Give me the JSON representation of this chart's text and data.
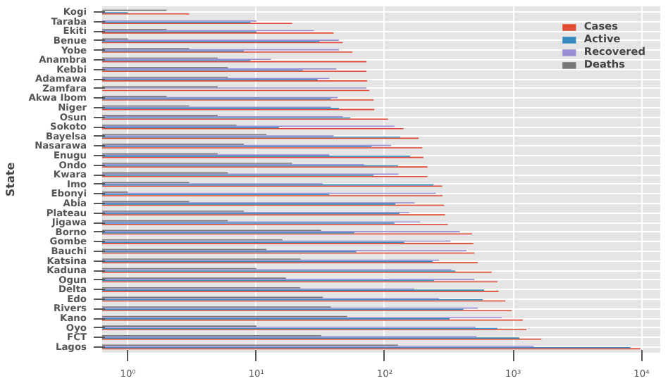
{
  "chart_data": {
    "type": "bar",
    "orientation": "horizontal",
    "log": "x",
    "ylabel": "State",
    "categories": [
      "Kogi",
      "Taraba",
      "Ekiti",
      "Benue",
      "Yobe",
      "Anambra",
      "Kebbi",
      "Adamawa",
      "Zamfara",
      "Akwa Ibom",
      "Niger",
      "Osun",
      "Sokoto",
      "Bayelsa",
      "Nasarawa",
      "Enugu",
      "Ondo",
      "Kwara",
      "Imo",
      "Ebonyi",
      "Abia",
      "Plateau",
      "Jigawa",
      "Borno",
      "Gombe",
      "Bauchi",
      "Katsina",
      "Kaduna",
      "Ogun",
      "Delta",
      "Edo",
      "Rivers",
      "Kano",
      "Oyo",
      "FCT",
      "Lagos"
    ],
    "series": [
      {
        "name": "Cases",
        "color": "#e24a33",
        "values": [
          3,
          19,
          40,
          47,
          56,
          72,
          72,
          73,
          76,
          82,
          83,
          106,
          140,
          184,
          196,
          200,
          215,
          215,
          280,
          282,
          290,
          295,
          310,
          478,
          490,
          500,
          530,
          680,
          755,
          770,
          870,
          975,
          1190,
          1270,
          1660,
          9800
        ]
      },
      {
        "name": "Active",
        "color": "#348abd",
        "values": [
          1,
          9,
          10,
          31,
          8,
          9,
          23,
          30,
          null,
          38,
          44,
          54,
          15,
          132,
          79,
          158,
          127,
          82,
          240,
          37,
          121,
          130,
          119,
          58,
          142,
          60,
          236,
          355,
          242,
          595,
          580,
          410,
          320,
          755,
          1120,
          8200
        ]
      },
      {
        "name": "Recovered",
        "color": "#988ed5",
        "values": [
          null,
          10,
          28,
          44,
          44,
          13,
          42,
          37,
          72,
          43,
          38,
          47,
          119,
          40,
          112,
          37,
          69,
          128,
          33,
          250,
          171,
          155,
          189,
          385,
          325,
          433,
          265,
          330,
          500,
          170,
          265,
          530,
          815,
          510,
          520,
          1450
        ]
      },
      {
        "name": "Deaths",
        "color": "#777777",
        "values": [
          2,
          null,
          2,
          1,
          3,
          5,
          6,
          6,
          5,
          2,
          3,
          5,
          7,
          12,
          8,
          5,
          19,
          6,
          3,
          1,
          3,
          8,
          6,
          32,
          16,
          12,
          22,
          10,
          17,
          22,
          33,
          38,
          51,
          10,
          32,
          127
        ]
      }
    ],
    "xlim": [
      0.63,
      14000
    ],
    "xticks": [
      {
        "value": 1,
        "label": "10⁰"
      },
      {
        "value": 10,
        "label": "10¹"
      },
      {
        "value": 100,
        "label": "10²"
      },
      {
        "value": 1000,
        "label": "10³"
      },
      {
        "value": 10000,
        "label": "10⁴"
      }
    ],
    "grid": true,
    "legend": "top right"
  }
}
